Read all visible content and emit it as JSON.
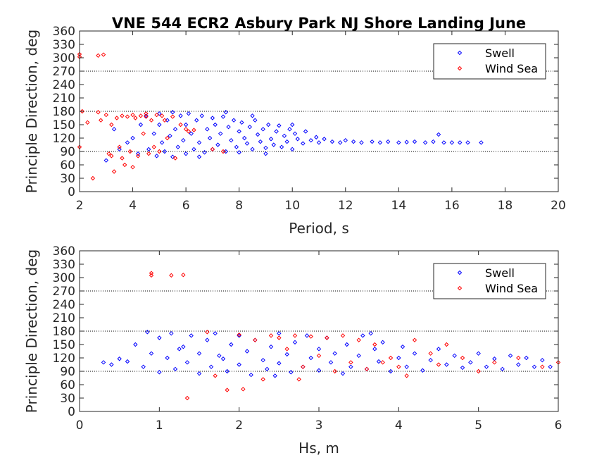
{
  "chart_data": [
    {
      "type": "scatter",
      "title": "VNE 544 ECR2 Asbury Park NJ Shore Landing June",
      "xlabel": "Period, s",
      "ylabel": "Principle Direction, deg",
      "xlim": [
        2,
        20
      ],
      "ylim": [
        0,
        360
      ],
      "xticks": [
        "2",
        "4",
        "6",
        "8",
        "10",
        "12",
        "14",
        "16",
        "18",
        "20"
      ],
      "yticks": [
        "0",
        "30",
        "60",
        "90",
        "120",
        "150",
        "180",
        "210",
        "240",
        "270",
        "300",
        "330",
        "360"
      ],
      "reference_lines": [
        90,
        180,
        270
      ],
      "legend_position": "top-right",
      "series": [
        {
          "name": "Swell",
          "color": "#0000ff",
          "points": [
            [
              4.5,
              170
            ],
            [
              4.6,
              95
            ],
            [
              4.8,
              130
            ],
            [
              4.9,
              80
            ],
            [
              5,
              175
            ],
            [
              5,
              150
            ],
            [
              5.1,
              110
            ],
            [
              5.2,
              90
            ],
            [
              5.3,
              160
            ],
            [
              5.4,
              125
            ],
            [
              5.5,
              178
            ],
            [
              5.5,
              78
            ],
            [
              5.6,
              140
            ],
            [
              5.7,
              100
            ],
            [
              5.8,
              170
            ],
            [
              5.9,
              115
            ],
            [
              6,
              150
            ],
            [
              6,
              85
            ],
            [
              6.1,
              175
            ],
            [
              6.2,
              130
            ],
            [
              6.3,
              95
            ],
            [
              6.4,
              160
            ],
            [
              6.5,
              110
            ],
            [
              6.6,
              170
            ],
            [
              6.7,
              88
            ],
            [
              6.8,
              140
            ],
            [
              6.9,
              120
            ],
            [
              7,
              165
            ],
            [
              7,
              95
            ],
            [
              7.1,
              150
            ],
            [
              7.2,
              105
            ],
            [
              7.3,
              130
            ],
            [
              7.4,
              168
            ],
            [
              7.5,
              90
            ],
            [
              7.6,
              145
            ],
            [
              7.7,
              115
            ],
            [
              7.8,
              160
            ],
            [
              7.9,
              100
            ],
            [
              8,
              135
            ],
            [
              8,
              88
            ],
            [
              8.1,
              155
            ],
            [
              8.2,
              120
            ],
            [
              8.3,
              108
            ],
            [
              8.4,
              145
            ],
            [
              8.5,
              95
            ],
            [
              8.6,
              160
            ],
            [
              8.7,
              128
            ],
            [
              8.8,
              112
            ],
            [
              8.9,
              140
            ],
            [
              9,
              98
            ],
            [
              9.1,
              150
            ],
            [
              9.2,
              118
            ],
            [
              9.3,
              105
            ],
            [
              9.4,
              135
            ],
            [
              9.5,
              148
            ],
            [
              9.6,
              100
            ],
            [
              9.7,
              125
            ],
            [
              9.8,
              112
            ],
            [
              9.9,
              140
            ],
            [
              10,
              95
            ],
            [
              10.1,
              130
            ],
            [
              10.2,
              118
            ],
            [
              10.4,
              108
            ],
            [
              10.5,
              135
            ],
            [
              10.7,
              115
            ],
            [
              10.9,
              122
            ],
            [
              11,
              110
            ],
            [
              11.2,
              118
            ],
            [
              11.5,
              112
            ],
            [
              11.8,
              110
            ],
            [
              12,
              115
            ],
            [
              12.3,
              112
            ],
            [
              12.6,
              110
            ],
            [
              13,
              112
            ],
            [
              13.3,
              110
            ],
            [
              13.6,
              112
            ],
            [
              14,
              110
            ],
            [
              14.3,
              111
            ],
            [
              14.6,
              112
            ],
            [
              15,
              110
            ],
            [
              15.3,
              112
            ],
            [
              15.5,
              128
            ],
            [
              15.7,
              110
            ],
            [
              16,
              110
            ],
            [
              16.3,
              110
            ],
            [
              16.6,
              110
            ],
            [
              17.1,
              110
            ],
            [
              4.2,
              85
            ],
            [
              4.3,
              150
            ],
            [
              3.8,
              110
            ],
            [
              3.5,
              95
            ],
            [
              3,
              70
            ],
            [
              3.3,
              140
            ],
            [
              4,
              120
            ],
            [
              6.5,
              78
            ],
            [
              7.5,
              178
            ],
            [
              8.5,
              170
            ],
            [
              9,
              85
            ],
            [
              10,
              150
            ]
          ]
        },
        {
          "name": "Wind Sea",
          "color": "#ff0000",
          "points": [
            [
              2,
              308
            ],
            [
              2,
              302
            ],
            [
              2.7,
              305
            ],
            [
              2.9,
              307
            ],
            [
              2,
              100
            ],
            [
              2.1,
              180
            ],
            [
              2.3,
              155
            ],
            [
              2.5,
              30
            ],
            [
              2.7,
              178
            ],
            [
              2.8,
              160
            ],
            [
              3,
              172
            ],
            [
              3.1,
              85
            ],
            [
              3.2,
              150
            ],
            [
              3.3,
              45
            ],
            [
              3.4,
              165
            ],
            [
              3.5,
              100
            ],
            [
              3.6,
              170
            ],
            [
              3.7,
              60
            ],
            [
              3.8,
              168
            ],
            [
              3.9,
              90
            ],
            [
              4,
              172
            ],
            [
              4,
              55
            ],
            [
              4.1,
              165
            ],
            [
              4.2,
              80
            ],
            [
              4.3,
              170
            ],
            [
              4.4,
              130
            ],
            [
              4.5,
              168
            ],
            [
              4.6,
              85
            ],
            [
              4.7,
              160
            ],
            [
              4.8,
              100
            ],
            [
              4.9,
              172
            ],
            [
              5,
              90
            ],
            [
              5.1,
              170
            ],
            [
              5.3,
              120
            ],
            [
              5.5,
              168
            ],
            [
              5.6,
              75
            ],
            [
              5.8,
              150
            ],
            [
              6,
              140
            ],
            [
              6.1,
              135
            ],
            [
              6.3,
              138
            ],
            [
              7,
              95
            ],
            [
              7.4,
              90
            ],
            [
              3.2,
              80
            ],
            [
              3.6,
              75
            ],
            [
              4.5,
              175
            ],
            [
              5.2,
              160
            ]
          ]
        }
      ]
    },
    {
      "type": "scatter",
      "xlabel": "Hs, m",
      "ylabel": "Principle Direction, deg",
      "xlim": [
        0,
        6
      ],
      "ylim": [
        0,
        360
      ],
      "xticks": [
        "0",
        "1",
        "2",
        "3",
        "4",
        "5",
        "6"
      ],
      "yticks": [
        "0",
        "30",
        "60",
        "90",
        "120",
        "150",
        "180",
        "210",
        "240",
        "270",
        "300",
        "330",
        "360"
      ],
      "reference_lines": [
        90,
        180,
        270
      ],
      "legend_position": "top-right",
      "series": [
        {
          "name": "Swell",
          "color": "#0000ff",
          "points": [
            [
              0.3,
              110
            ],
            [
              0.4,
              105
            ],
            [
              0.5,
              118
            ],
            [
              0.6,
              112
            ],
            [
              0.7,
              150
            ],
            [
              0.8,
              100
            ],
            [
              0.85,
              178
            ],
            [
              0.9,
              130
            ],
            [
              1,
              88
            ],
            [
              1,
              165
            ],
            [
              1.1,
              120
            ],
            [
              1.15,
              175
            ],
            [
              1.2,
              95
            ],
            [
              1.3,
              145
            ],
            [
              1.35,
              110
            ],
            [
              1.4,
              170
            ],
            [
              1.5,
              85
            ],
            [
              1.5,
              130
            ],
            [
              1.6,
              160
            ],
            [
              1.65,
              100
            ],
            [
              1.7,
              175
            ],
            [
              1.8,
              118
            ],
            [
              1.85,
              90
            ],
            [
              1.9,
              150
            ],
            [
              2,
              170
            ],
            [
              2,
              105
            ],
            [
              2.1,
              135
            ],
            [
              2.15,
              82
            ],
            [
              2.2,
              160
            ],
            [
              2.3,
              115
            ],
            [
              2.35,
              95
            ],
            [
              2.4,
              145
            ],
            [
              2.5,
              175
            ],
            [
              2.5,
              108
            ],
            [
              2.6,
              128
            ],
            [
              2.65,
              88
            ],
            [
              2.7,
              155
            ],
            [
              2.8,
              100
            ],
            [
              2.85,
              170
            ],
            [
              2.9,
              120
            ],
            [
              3,
              140
            ],
            [
              3,
              92
            ],
            [
              3.1,
              165
            ],
            [
              3.15,
              110
            ],
            [
              3.2,
              130
            ],
            [
              3.3,
              85
            ],
            [
              3.35,
              150
            ],
            [
              3.4,
              100
            ],
            [
              3.5,
              125
            ],
            [
              3.55,
              170
            ],
            [
              3.6,
              95
            ],
            [
              3.7,
              140
            ],
            [
              3.75,
              112
            ],
            [
              3.8,
              155
            ],
            [
              3.9,
              90
            ],
            [
              4,
              120
            ],
            [
              4.05,
              145
            ],
            [
              4.1,
              100
            ],
            [
              4.2,
              130
            ],
            [
              4.3,
              92
            ],
            [
              4.4,
              115
            ],
            [
              4.5,
              140
            ],
            [
              4.6,
              105
            ],
            [
              4.7,
              125
            ],
            [
              4.8,
              98
            ],
            [
              4.9,
              110
            ],
            [
              5,
              130
            ],
            [
              5.1,
              100
            ],
            [
              5.2,
              118
            ],
            [
              5.3,
              95
            ],
            [
              5.4,
              125
            ],
            [
              5.5,
              105
            ],
            [
              5.6,
              120
            ],
            [
              5.7,
              100
            ],
            [
              5.8,
              115
            ],
            [
              5.9,
              100
            ],
            [
              1.25,
              140
            ],
            [
              2.45,
              80
            ],
            [
              3.65,
              175
            ],
            [
              1.75,
              125
            ]
          ]
        },
        {
          "name": "Wind Sea",
          "color": "#ff0000",
          "points": [
            [
              0.9,
              310
            ],
            [
              0.9,
              305
            ],
            [
              1.15,
              305
            ],
            [
              1.3,
              306
            ],
            [
              1.35,
              30
            ],
            [
              1.6,
              178
            ],
            [
              1.7,
              80
            ],
            [
              1.85,
              48
            ],
            [
              2,
              172
            ],
            [
              2.05,
              50
            ],
            [
              2.2,
              160
            ],
            [
              2.3,
              72
            ],
            [
              2.4,
              170
            ],
            [
              2.5,
              165
            ],
            [
              2.6,
              140
            ],
            [
              2.7,
              170
            ],
            [
              2.8,
              100
            ],
            [
              2.9,
              168
            ],
            [
              3,
              125
            ],
            [
              3.1,
              165
            ],
            [
              3.2,
              90
            ],
            [
              3.3,
              170
            ],
            [
              3.4,
              110
            ],
            [
              3.5,
              160
            ],
            [
              3.6,
              95
            ],
            [
              3.7,
              150
            ],
            [
              3.8,
              110
            ],
            [
              3.9,
              120
            ],
            [
              4,
              100
            ],
            [
              4.2,
              160
            ],
            [
              4.4,
              130
            ],
            [
              4.5,
              105
            ],
            [
              4.6,
              150
            ],
            [
              4.8,
              120
            ],
            [
              5,
              90
            ],
            [
              5.2,
              110
            ],
            [
              5.5,
              120
            ],
            [
              5.8,
              100
            ],
            [
              6,
              110
            ],
            [
              4.1,
              80
            ],
            [
              2.75,
              72
            ]
          ]
        }
      ]
    }
  ]
}
